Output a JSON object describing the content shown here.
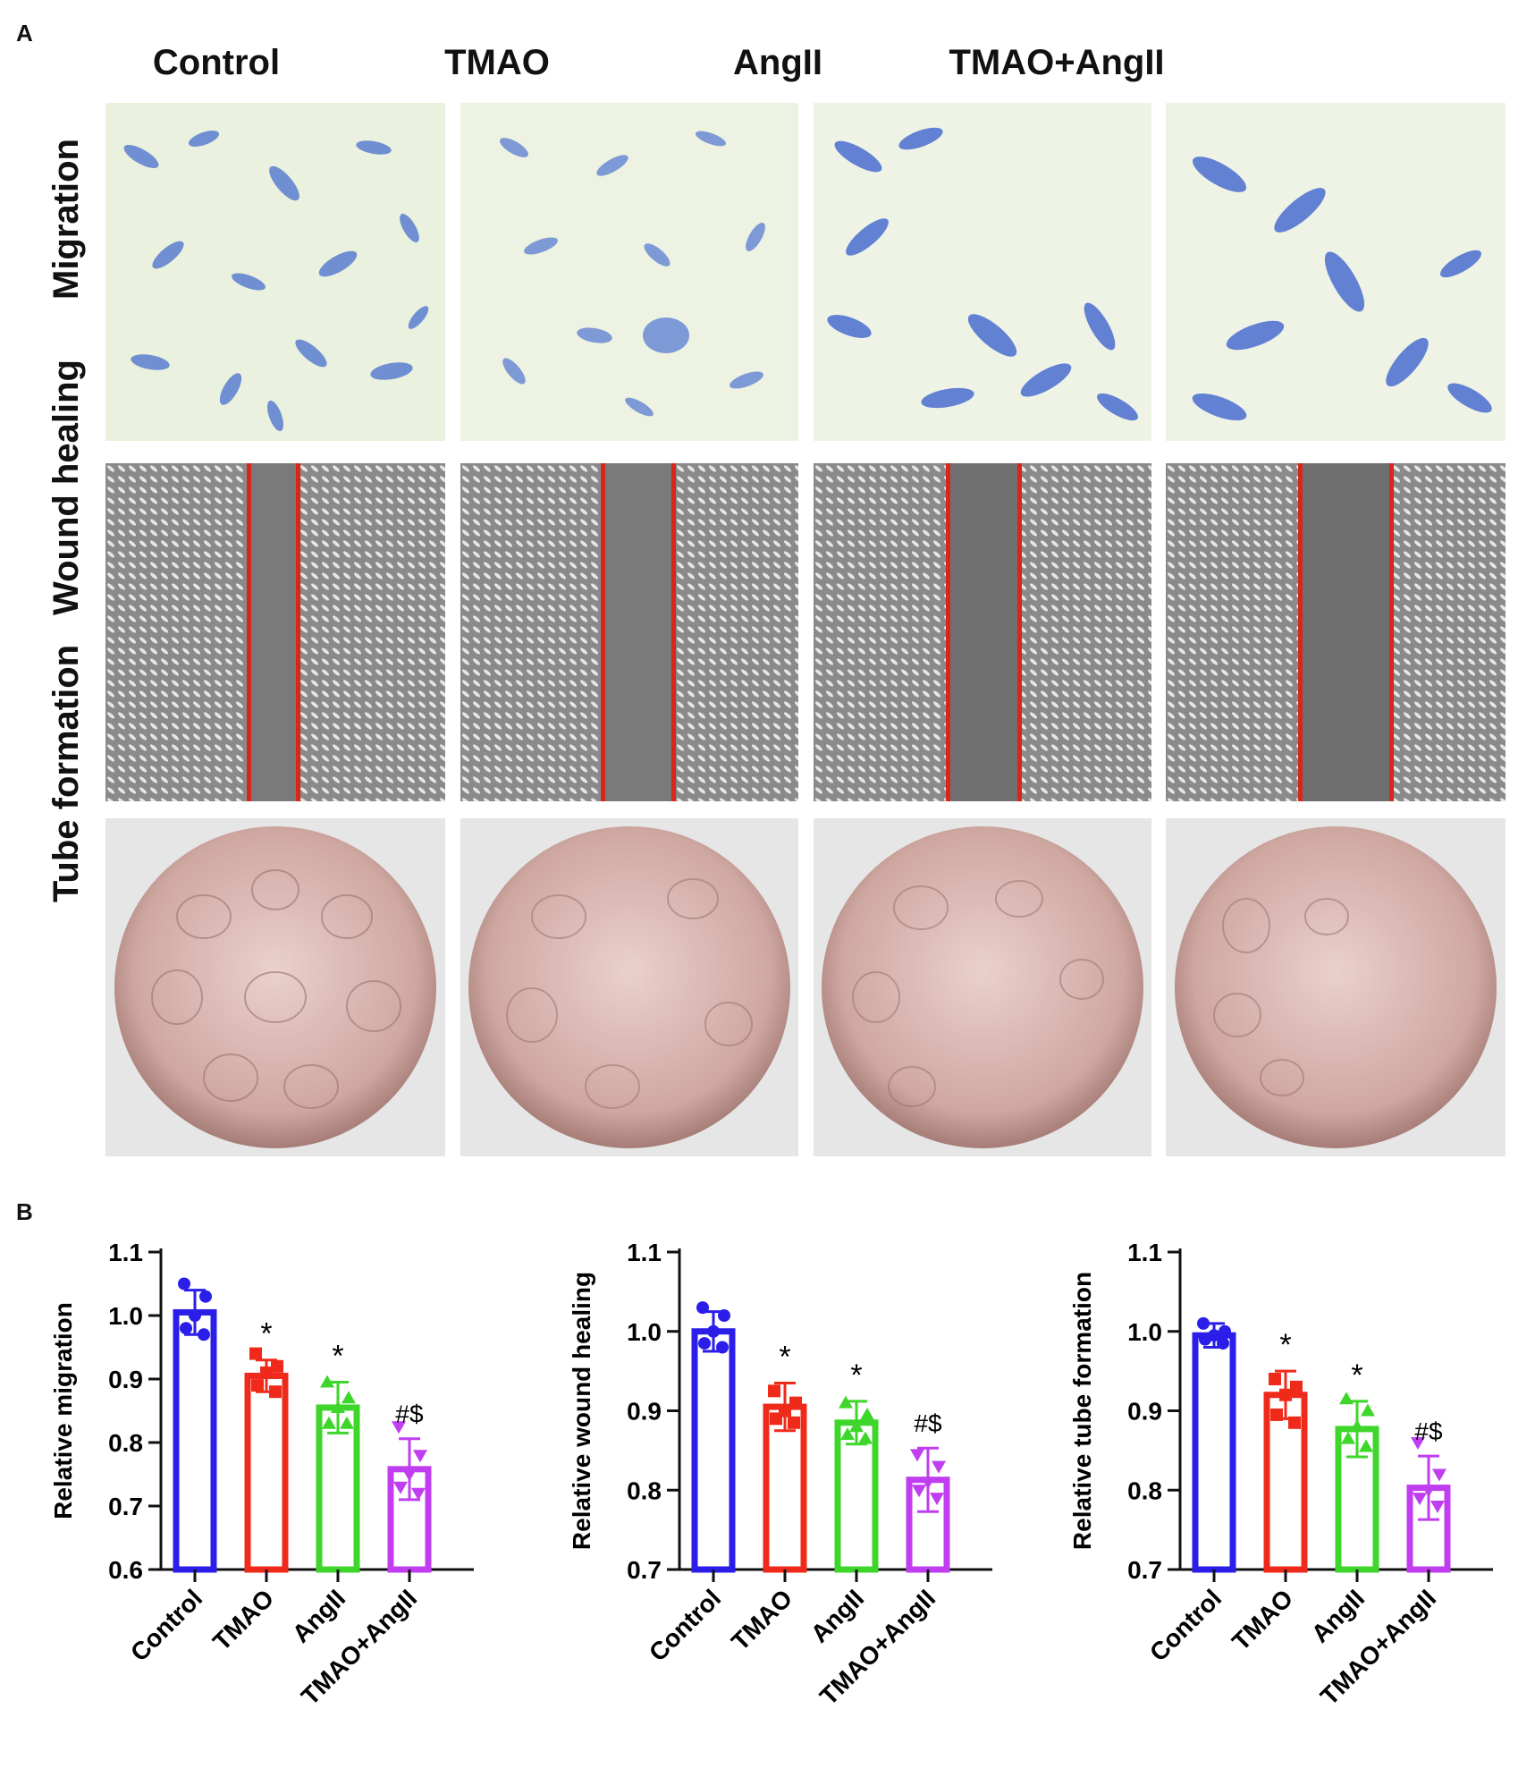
{
  "panel_a": {
    "letter": "A",
    "columns": [
      "Control",
      "TMAO",
      "AngII",
      "TMAO+AngII"
    ],
    "rows": [
      "Migration",
      "Wound healing",
      "Tube formation"
    ]
  },
  "panel_b": {
    "letter": "B"
  },
  "colors": {
    "control": "#2a1ee8",
    "tmao": "#f02a1a",
    "angii": "#3ed62a",
    "tmao_angii": "#c03ef0"
  },
  "chart_data": [
    {
      "type": "bar",
      "ylabel": "Relative migration",
      "ylim": [
        0.6,
        1.1
      ],
      "yticks": [
        "0.6",
        "0.7",
        "0.8",
        "0.9",
        "1.0",
        "1.1"
      ],
      "categories": [
        "Control",
        "TMAO",
        "AngII",
        "TMAO+AngII"
      ],
      "values": [
        1.005,
        0.905,
        0.855,
        0.758
      ],
      "errors": [
        0.035,
        0.025,
        0.04,
        0.048
      ],
      "points": [
        [
          1.05,
          1.03,
          1.0,
          0.98,
          0.97
        ],
        [
          0.94,
          0.92,
          0.91,
          0.89,
          0.88
        ],
        [
          0.895,
          0.87,
          0.855,
          0.83,
          0.83
        ],
        [
          0.825,
          0.78,
          0.75,
          0.73,
          0.72
        ]
      ],
      "annotations": [
        "",
        "*",
        "*",
        "#$"
      ]
    },
    {
      "type": "bar",
      "ylabel": "Relative wound healing",
      "ylim": [
        0.7,
        1.1
      ],
      "yticks": [
        "0.7",
        "0.8",
        "0.9",
        "1.0",
        "1.1"
      ],
      "categories": [
        "Control",
        "TMAO",
        "AngII",
        "TMAO+AngII"
      ],
      "values": [
        1.0,
        0.905,
        0.885,
        0.813
      ],
      "errors": [
        0.025,
        0.03,
        0.027,
        0.04
      ],
      "points": [
        [
          1.03,
          1.02,
          1.0,
          0.985,
          0.98
        ],
        [
          0.925,
          0.91,
          0.9,
          0.89,
          0.885
        ],
        [
          0.91,
          0.895,
          0.88,
          0.87,
          0.865
        ],
        [
          0.845,
          0.83,
          0.81,
          0.8,
          0.79
        ]
      ],
      "annotations": [
        "",
        "*",
        "*",
        "#$"
      ]
    },
    {
      "type": "bar",
      "ylabel": "Relative tube formation",
      "ylim": [
        0.7,
        1.1
      ],
      "yticks": [
        "0.7",
        "0.8",
        "0.9",
        "1.0",
        "1.1"
      ],
      "categories": [
        "Control",
        "TMAO",
        "AngII",
        "TMAO+AngII"
      ],
      "values": [
        0.995,
        0.92,
        0.877,
        0.803
      ],
      "errors": [
        0.015,
        0.03,
        0.035,
        0.04
      ],
      "points": [
        [
          1.01,
          1.0,
          0.995,
          0.99,
          0.985
        ],
        [
          0.94,
          0.93,
          0.92,
          0.895,
          0.885
        ],
        [
          0.915,
          0.9,
          0.88,
          0.865,
          0.855
        ],
        [
          0.86,
          0.82,
          0.8,
          0.79,
          0.78
        ]
      ],
      "annotations": [
        "",
        "*",
        "*",
        "#$"
      ]
    }
  ]
}
